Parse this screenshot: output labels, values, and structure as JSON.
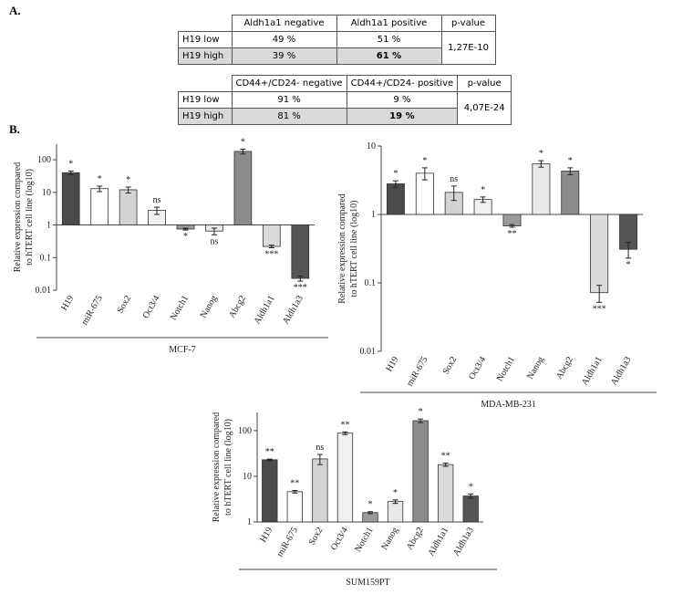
{
  "panel_a_label": "A.",
  "panel_b_label": "B.",
  "tables": [
    {
      "headers": [
        "Aldh1a1 negative",
        "Aldh1a1 positive",
        "p-value"
      ],
      "rows": [
        [
          "H19 low",
          "49 %",
          "51 %"
        ],
        [
          "H19 high",
          "39 %",
          "61 %"
        ]
      ],
      "p_value": "1,27E-10"
    },
    {
      "headers": [
        "CD44+/CD24- negative",
        "CD44+/CD24- positive",
        "p-value"
      ],
      "rows": [
        [
          "H19 low",
          "91 %",
          "9 %"
        ],
        [
          "H19 high",
          "81 %",
          "19 %"
        ]
      ],
      "p_value": "4,07E-24"
    }
  ],
  "chart_data": [
    {
      "type": "bar",
      "xlabel": "MCF-7",
      "ylabel": [
        "Relative expression compared",
        "to hTERT cell line (log10)"
      ],
      "log_scale": true,
      "ylim": [
        0.01,
        300
      ],
      "yticks": [
        0.01,
        0.1,
        1,
        10,
        100
      ],
      "categories": [
        "H19",
        "miR-675",
        "Sox2",
        "Oct3/4",
        "Notch1",
        "Nanog",
        "Abcg2",
        "Aldh1a1",
        "Aldh1a3"
      ],
      "values": [
        40,
        13,
        12,
        2.8,
        0.75,
        0.65,
        180,
        0.22,
        0.023
      ],
      "errors": [
        5,
        2.5,
        2.5,
        0.7,
        0.05,
        0.15,
        30,
        0.02,
        0.004
      ],
      "annotations": [
        "*",
        "*",
        "*",
        "ns",
        "*",
        "ns",
        "*",
        "***",
        "***"
      ],
      "colors": [
        "#4a4a4a",
        "#ffffff",
        "#d3d3d3",
        "#f0f0f0",
        "#9a9a9a",
        "#e8e8e8",
        "#8c8c8c",
        "#dcdcdc",
        "#555555"
      ]
    },
    {
      "type": "bar",
      "xlabel": "MDA-MB-231",
      "ylabel": [
        "Relative expression compared",
        "to hTERT cell line (log10)"
      ],
      "log_scale": true,
      "ylim": [
        0.01,
        10
      ],
      "yticks": [
        0.01,
        0.1,
        1,
        10
      ],
      "categories": [
        "H19",
        "miR-675",
        "Sox2",
        "Oct3/4",
        "Notch1",
        "Nanog",
        "Abcg2",
        "Aldh1a1",
        "Aldh1a3"
      ],
      "values": [
        2.8,
        4,
        2.1,
        1.65,
        0.68,
        5.5,
        4.3,
        0.072,
        0.31
      ],
      "errors": [
        0.3,
        0.8,
        0.5,
        0.15,
        0.03,
        0.6,
        0.5,
        0.02,
        0.08
      ],
      "annotations": [
        "*",
        "*",
        "ns",
        "*",
        "**",
        "*",
        "*",
        "***",
        "*"
      ],
      "colors": [
        "#4a4a4a",
        "#ffffff",
        "#d3d3d3",
        "#f0f0f0",
        "#9a9a9a",
        "#e8e8e8",
        "#8c8c8c",
        "#dcdcdc",
        "#555555"
      ]
    },
    {
      "type": "bar",
      "xlabel": "SUM159PT",
      "ylabel": [
        "Relative expression compared",
        "to hTERT cell line (log10)"
      ],
      "log_scale": true,
      "ylim": [
        1,
        250
      ],
      "yticks": [
        1,
        10,
        100
      ],
      "categories": [
        "H19",
        "miR-675",
        "Sox2",
        "Oct3/4",
        "Notch1",
        "Nanog",
        "Abcg2",
        "Aldh1a1",
        "Aldh1a3"
      ],
      "values": [
        23,
        4.6,
        24,
        88,
        1.6,
        2.8,
        165,
        18,
        3.7
      ],
      "errors": [
        0.8,
        0.3,
        6,
        6,
        0.08,
        0.25,
        15,
        1.5,
        0.4
      ],
      "annotations": [
        "**",
        "**",
        "ns",
        "**",
        "*",
        "*",
        "*",
        "**",
        "*"
      ],
      "colors": [
        "#4a4a4a",
        "#ffffff",
        "#d3d3d3",
        "#f0f0f0",
        "#9a9a9a",
        "#e8e8e8",
        "#8c8c8c",
        "#dcdcdc",
        "#555555"
      ]
    }
  ]
}
